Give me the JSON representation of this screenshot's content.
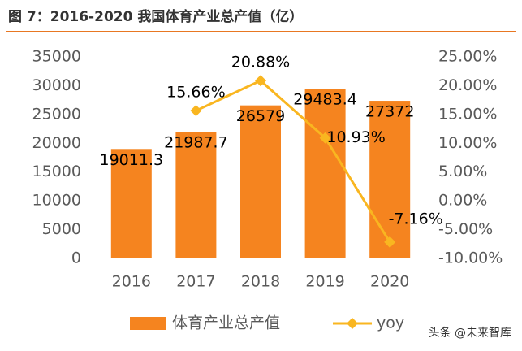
{
  "chart_data": {
    "type": "bar-line",
    "title": "图 7：2016-2020 我国体育产业总产值（亿）",
    "categories": [
      "2016",
      "2017",
      "2018",
      "2019",
      "2020"
    ],
    "series": [
      {
        "name": "体育产业总产值",
        "color": "#F5841F",
        "type": "bar",
        "values": [
          19011.3,
          21987.7,
          26579,
          29483.4,
          27372
        ]
      },
      {
        "name": "yoy",
        "color": "#F9B620",
        "type": "line",
        "axis": "y2",
        "values": [
          null,
          15.66,
          20.88,
          10.93,
          -7.16
        ],
        "value_labels": [
          null,
          "15.66%",
          "20.88%",
          "10.93%",
          "-7.16%"
        ]
      }
    ],
    "ylim": [
      0,
      35000
    ],
    "yticks": [
      0,
      5000,
      10000,
      15000,
      20000,
      25000,
      30000,
      35000
    ],
    "y2lim": [
      -10,
      25
    ],
    "y2ticks": [
      {
        "value": -10,
        "label": "-10.00%"
      },
      {
        "value": -5,
        "label": "-5.00%"
      },
      {
        "value": 0,
        "label": "0.00%"
      },
      {
        "value": 5,
        "label": "5.00%"
      },
      {
        "value": 10,
        "label": "10.00%"
      },
      {
        "value": 15,
        "label": "15.00%"
      },
      {
        "value": 20,
        "label": "20.00%"
      },
      {
        "value": 25,
        "label": "25.00%"
      }
    ],
    "legend": "bottom",
    "watermark": "头条 @未来智库"
  }
}
